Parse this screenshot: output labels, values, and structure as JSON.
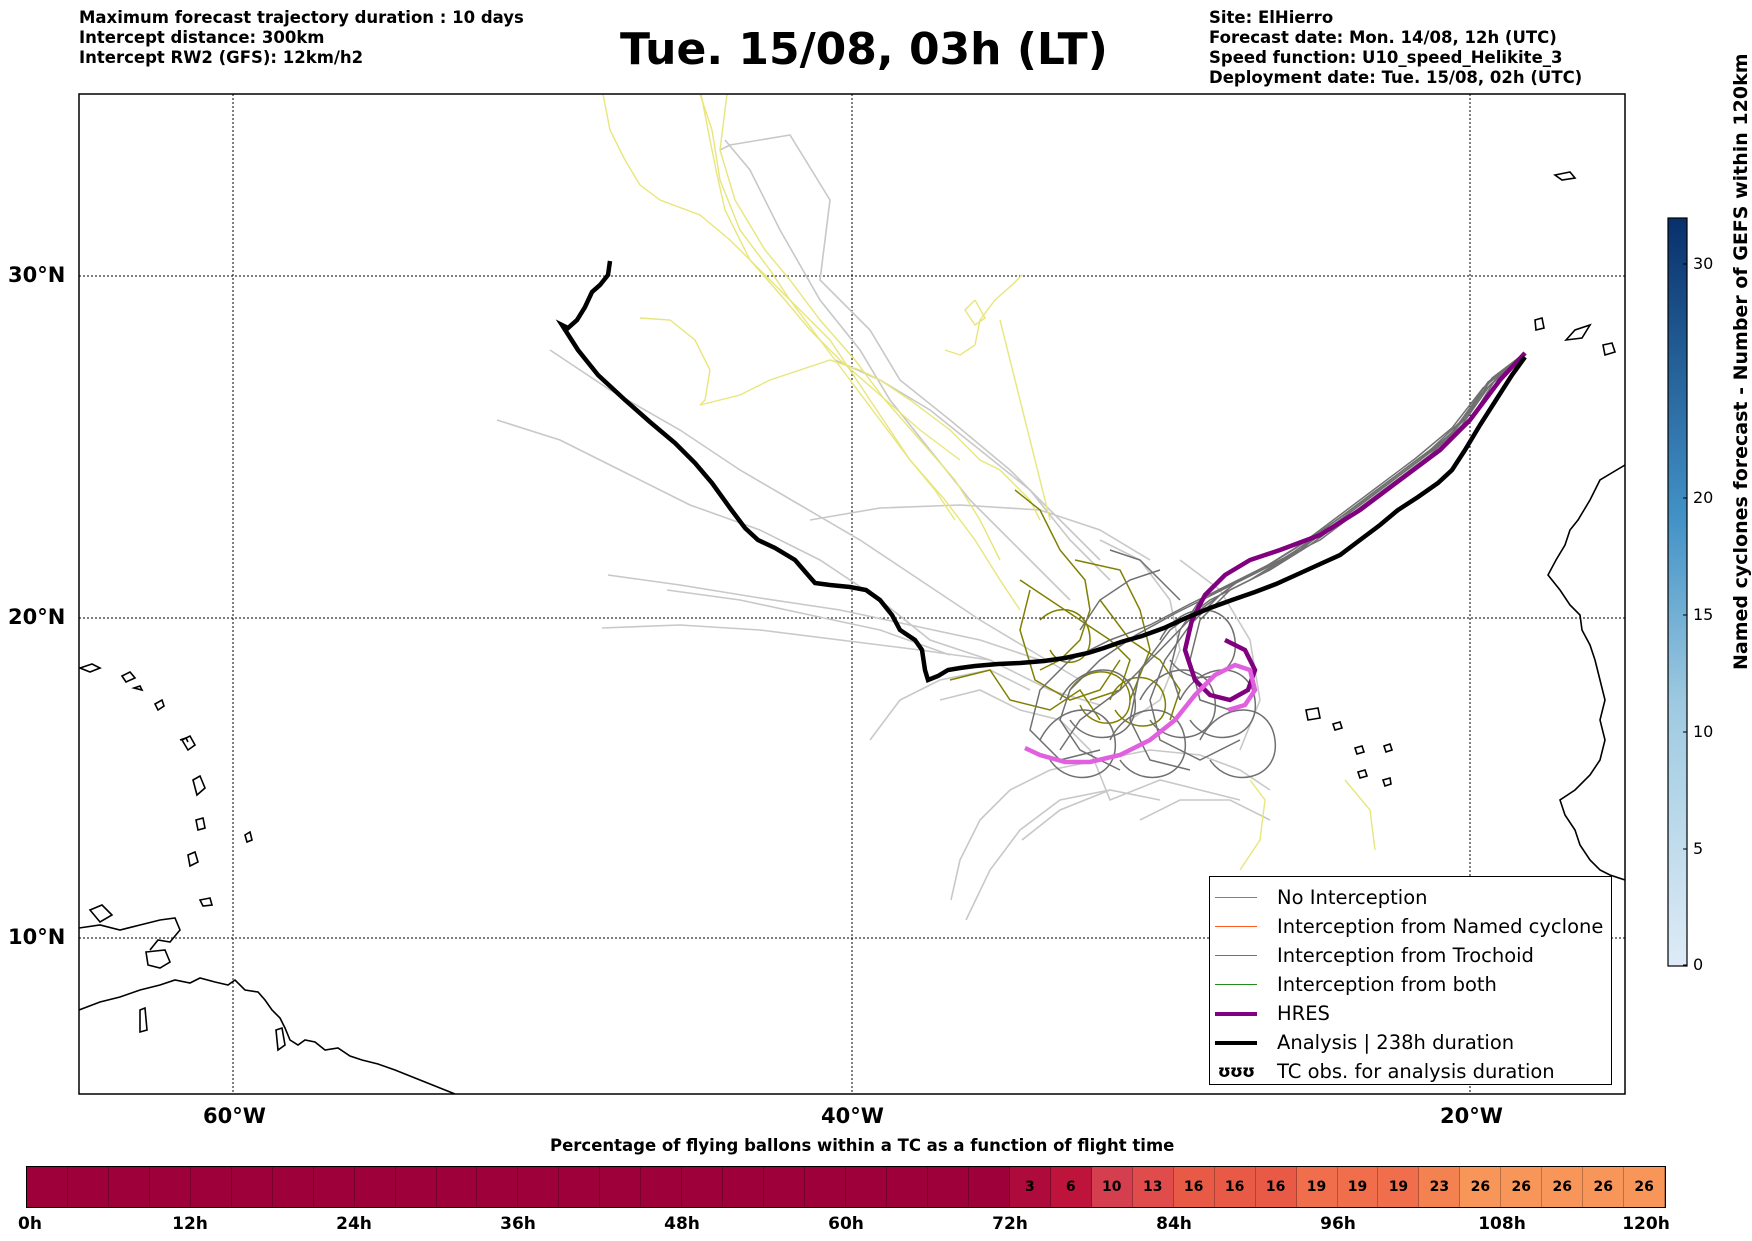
{
  "header_left": [
    "Maximum forecast trajectory duration : 10 days",
    "Intercept distance: 300km",
    "Intercept RW2 (GFS):  12km/h2"
  ],
  "title": "Tue. 15/08, 03h (LT)",
  "header_right": [
    "Site: ElHierro",
    "Forecast date: Mon. 14/08, 12h (UTC)",
    "Speed function: U10_speed_Helikite_3",
    "Deployment date: Tue. 15/08, 02h (UTC)"
  ],
  "map": {
    "lat_labels": [
      "30°N",
      "20°N",
      "10°N"
    ],
    "lon_labels": [
      "60°W",
      "40°W",
      "20°W"
    ]
  },
  "legend": {
    "items": [
      {
        "label": "No Interception",
        "color": "#808080",
        "style": "thin"
      },
      {
        "label": "Interception from Named cyclone",
        "color": "#ff5a1e",
        "style": "thin"
      },
      {
        "label": "Interception from Trochoid",
        "color": "#808000",
        "style": "thin"
      },
      {
        "label": "Interception from both",
        "color": "#228b22",
        "style": "thin"
      },
      {
        "label": "HRES",
        "color": "#800080",
        "style": "thick"
      },
      {
        "label": "Analysis | 238h duration",
        "color": "#000000",
        "style": "thick"
      },
      {
        "label": "TC obs. for analysis duration",
        "color": "#000000",
        "style": "symbol",
        "symbol": "ʊʊʊ"
      }
    ]
  },
  "colorbar": {
    "title": "Named cyclones forecast - Number of GEFS within 120km",
    "ticks": [
      "30",
      "20",
      "15",
      "10",
      "5",
      "0"
    ]
  },
  "percentage_bar": {
    "title": "Percentage of flying ballons within a TC as a function of flight time",
    "cells": [
      "",
      "",
      "",
      "",
      "",
      "",
      "",
      "",
      "",
      "",
      "",
      "",
      "",
      "",
      "",
      "",
      "",
      "",
      "",
      "",
      "",
      "",
      "",
      "",
      "3",
      "6",
      "10",
      "13",
      "16",
      "16",
      "16",
      "19",
      "19",
      "19",
      "23",
      "26",
      "26",
      "26",
      "26",
      "26"
    ],
    "ticks": [
      "0h",
      "12h",
      "24h",
      "36h",
      "48h",
      "60h",
      "72h",
      "84h",
      "96h",
      "108h",
      "120h"
    ]
  }
}
